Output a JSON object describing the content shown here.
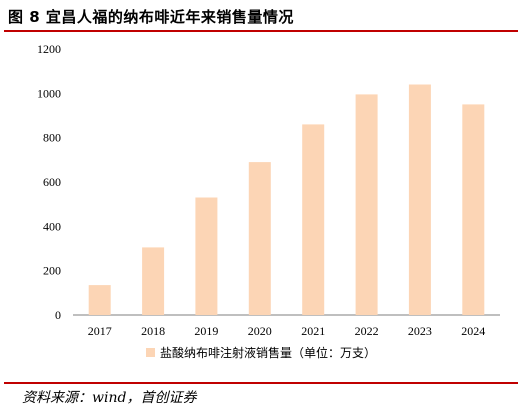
{
  "title": "图 8 宜昌人福的纳布啡近年来销售量情况",
  "source": "资料来源：wind，首创证券",
  "chart_data": {
    "type": "bar",
    "categories": [
      "2017",
      "2018",
      "2019",
      "2020",
      "2021",
      "2022",
      "2023",
      "2024"
    ],
    "series": [
      {
        "name": "盐酸纳布啡注射液销售量（单位：万支）",
        "values": [
          135,
          305,
          530,
          690,
          860,
          995,
          1040,
          950
        ],
        "color": "#fcd5b5"
      }
    ],
    "yticks": [
      "0",
      "200",
      "400",
      "600",
      "800",
      "1000",
      "1200"
    ],
    "ylim": [
      0,
      1200
    ],
    "grid": false,
    "legend": "bottom-center"
  }
}
